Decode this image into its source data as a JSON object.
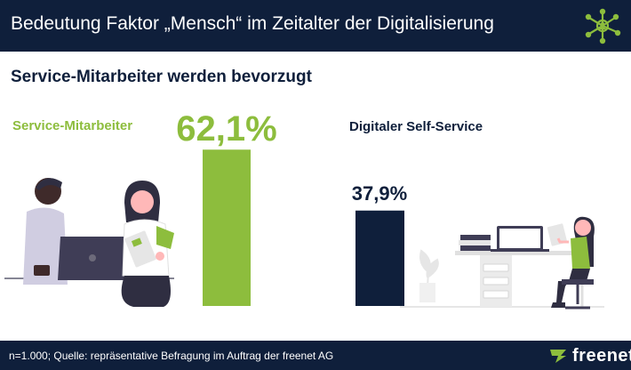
{
  "header": {
    "title": "Bedeutung Faktor „Mensch“ im Zeitalter der Digitalisierung",
    "icon": "network-hub-icon"
  },
  "subtitle": "Service-Mitarbeiter werden bevorzugt",
  "colors": {
    "navy": "#0f1f3b",
    "green": "#8dbd3d",
    "white": "#ffffff"
  },
  "chart_data": {
    "type": "bar",
    "title": "Service-Mitarbeiter werden bevorzugt",
    "xlabel": "",
    "ylabel": "",
    "ylim": [
      0,
      100
    ],
    "grid": false,
    "categories": [
      "Service-Mitarbeiter",
      "Digitaler Self-Service"
    ],
    "values": [
      62.1,
      37.9
    ],
    "labels": [
      "62,1%",
      "37,9%"
    ],
    "colors": [
      "#8dbd3d",
      "#0f1f3b"
    ]
  },
  "footer": {
    "source": "n=1.000; Quelle: repräsentative Befragung im Auftrag der freenet AG",
    "brand": "freenet",
    "brand_icon": "freenet-logo-icon"
  }
}
